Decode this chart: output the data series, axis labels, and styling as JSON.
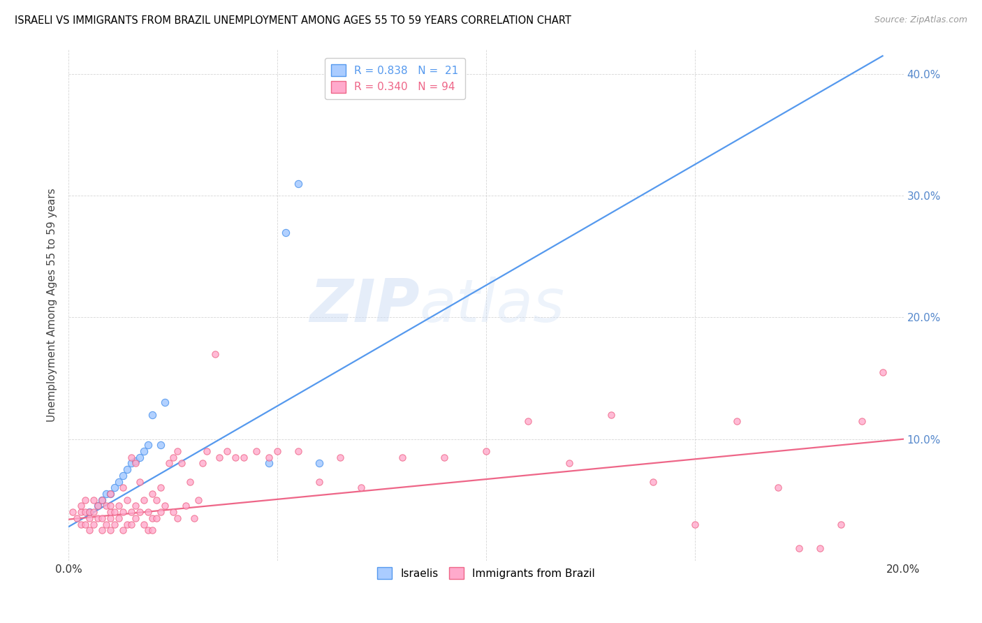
{
  "title": "ISRAELI VS IMMIGRANTS FROM BRAZIL UNEMPLOYMENT AMONG AGES 55 TO 59 YEARS CORRELATION CHART",
  "source": "Source: ZipAtlas.com",
  "ylabel": "Unemployment Among Ages 55 to 59 years",
  "xlim": [
    0.0,
    0.2
  ],
  "ylim": [
    0.0,
    0.42
  ],
  "right_yticks": [
    0.0,
    0.1,
    0.2,
    0.3,
    0.4
  ],
  "right_yticklabels": [
    "",
    "10.0%",
    "20.0%",
    "30.0%",
    "40.0%"
  ],
  "xticks": [
    0.0,
    0.05,
    0.1,
    0.15,
    0.2
  ],
  "xticklabels": [
    "0.0%",
    "",
    "",
    "",
    "20.0%"
  ],
  "israeli_color": "#aaccff",
  "brazil_color": "#ffaacc",
  "israeli_edge_color": "#5599ee",
  "brazil_edge_color": "#ee6688",
  "israeli_line_color": "#5599ee",
  "brazil_line_color": "#ee6688",
  "legend_R_israeli": "R = 0.838",
  "legend_N_israeli": "N =  21",
  "legend_R_brazil": "R = 0.340",
  "legend_N_brazil": "N = 94",
  "watermark_1": "ZIP",
  "watermark_2": "atlas",
  "israeli_scatter_x": [
    0.005,
    0.007,
    0.008,
    0.009,
    0.01,
    0.011,
    0.012,
    0.013,
    0.014,
    0.015,
    0.016,
    0.017,
    0.018,
    0.019,
    0.02,
    0.022,
    0.023,
    0.048,
    0.052,
    0.055,
    0.06
  ],
  "israeli_scatter_y": [
    0.04,
    0.045,
    0.05,
    0.055,
    0.055,
    0.06,
    0.065,
    0.07,
    0.075,
    0.08,
    0.082,
    0.085,
    0.09,
    0.095,
    0.12,
    0.095,
    0.13,
    0.08,
    0.27,
    0.31,
    0.08
  ],
  "brazil_scatter_x": [
    0.001,
    0.002,
    0.003,
    0.003,
    0.003,
    0.004,
    0.004,
    0.004,
    0.005,
    0.005,
    0.005,
    0.006,
    0.006,
    0.006,
    0.007,
    0.007,
    0.008,
    0.008,
    0.008,
    0.009,
    0.009,
    0.01,
    0.01,
    0.01,
    0.01,
    0.01,
    0.011,
    0.011,
    0.012,
    0.012,
    0.013,
    0.013,
    0.013,
    0.014,
    0.014,
    0.015,
    0.015,
    0.015,
    0.016,
    0.016,
    0.016,
    0.017,
    0.017,
    0.018,
    0.018,
    0.019,
    0.019,
    0.02,
    0.02,
    0.02,
    0.021,
    0.021,
    0.022,
    0.022,
    0.023,
    0.024,
    0.025,
    0.025,
    0.026,
    0.026,
    0.027,
    0.028,
    0.029,
    0.03,
    0.031,
    0.032,
    0.033,
    0.035,
    0.036,
    0.038,
    0.04,
    0.042,
    0.045,
    0.048,
    0.05,
    0.055,
    0.06,
    0.065,
    0.07,
    0.08,
    0.09,
    0.1,
    0.11,
    0.12,
    0.13,
    0.14,
    0.15,
    0.16,
    0.17,
    0.175,
    0.18,
    0.185,
    0.19,
    0.195
  ],
  "brazil_scatter_y": [
    0.04,
    0.035,
    0.03,
    0.04,
    0.045,
    0.03,
    0.04,
    0.05,
    0.025,
    0.035,
    0.04,
    0.03,
    0.04,
    0.05,
    0.035,
    0.045,
    0.025,
    0.035,
    0.05,
    0.03,
    0.045,
    0.025,
    0.035,
    0.04,
    0.045,
    0.055,
    0.03,
    0.04,
    0.035,
    0.045,
    0.025,
    0.04,
    0.06,
    0.03,
    0.05,
    0.03,
    0.04,
    0.085,
    0.035,
    0.045,
    0.08,
    0.04,
    0.065,
    0.03,
    0.05,
    0.025,
    0.04,
    0.025,
    0.035,
    0.055,
    0.035,
    0.05,
    0.04,
    0.06,
    0.045,
    0.08,
    0.04,
    0.085,
    0.035,
    0.09,
    0.08,
    0.045,
    0.065,
    0.035,
    0.05,
    0.08,
    0.09,
    0.17,
    0.085,
    0.09,
    0.085,
    0.085,
    0.09,
    0.085,
    0.09,
    0.09,
    0.065,
    0.085,
    0.06,
    0.085,
    0.085,
    0.09,
    0.115,
    0.08,
    0.12,
    0.065,
    0.03,
    0.115,
    0.06,
    0.01,
    0.01,
    0.03,
    0.115,
    0.155
  ],
  "israeli_trend_x": [
    0.0,
    0.195
  ],
  "israeli_trend_y": [
    0.028,
    0.415
  ],
  "brazil_trend_x": [
    0.0,
    0.2
  ],
  "brazil_trend_y": [
    0.034,
    0.1
  ]
}
